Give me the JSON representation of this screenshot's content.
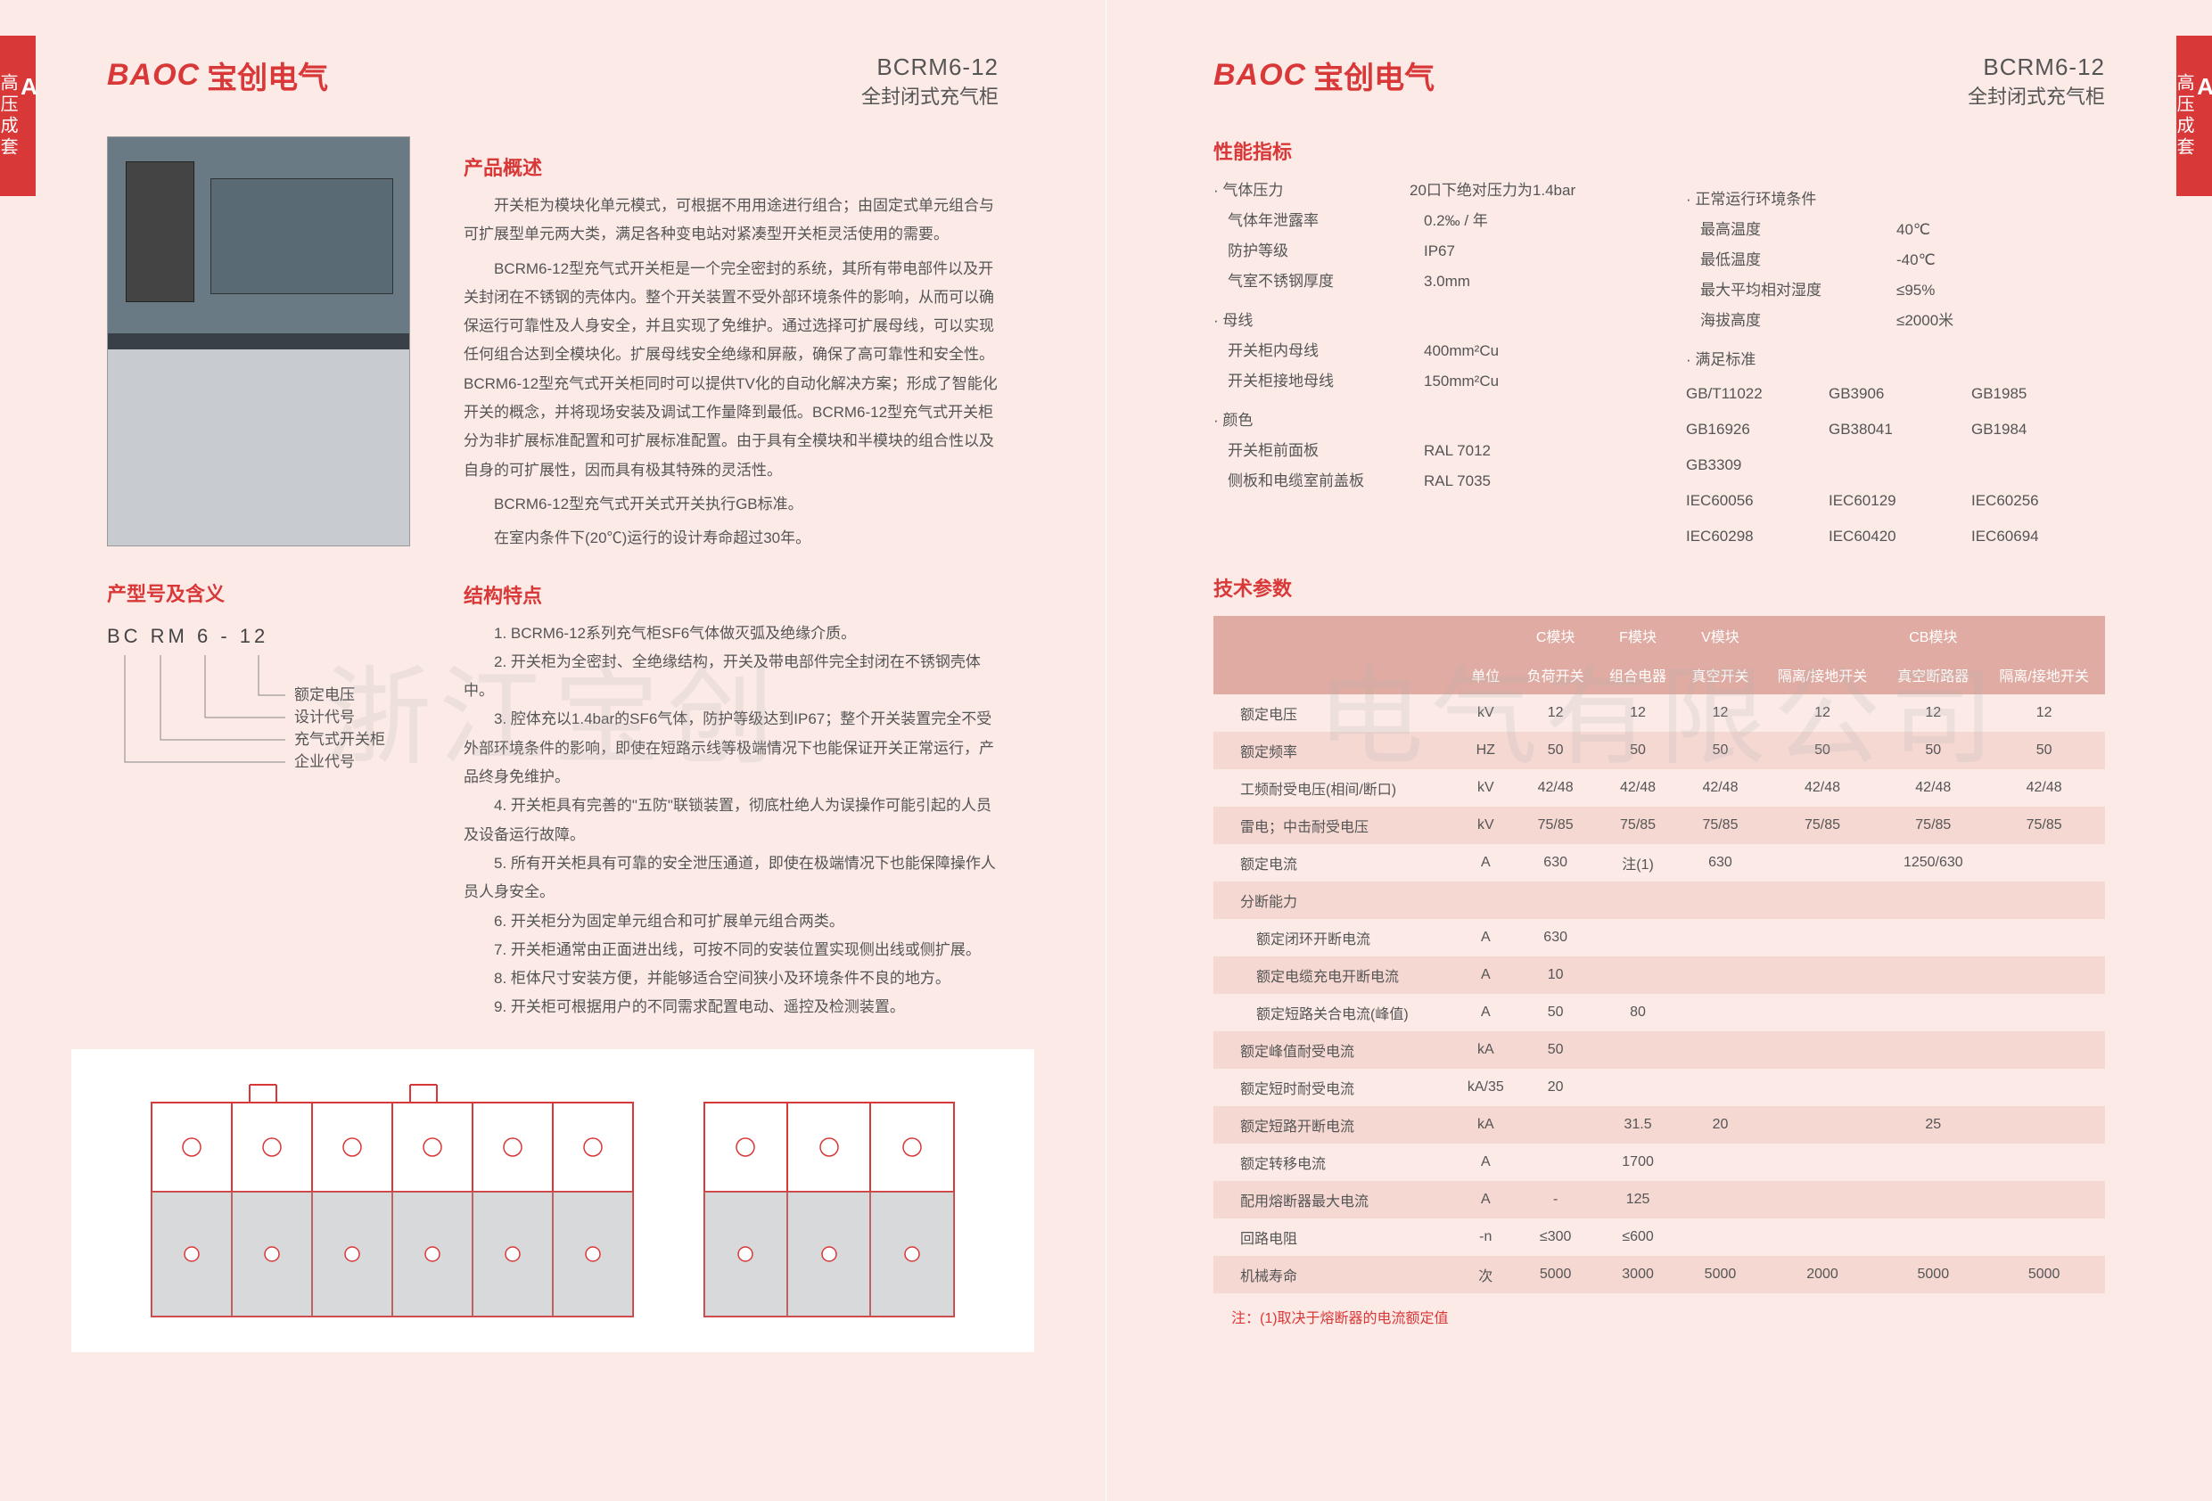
{
  "side_tab": {
    "letter": "A",
    "text": "高压成套"
  },
  "logo": {
    "mark": "BAOC",
    "cn": "宝创电气"
  },
  "model": {
    "code": "BCRM6-12",
    "sub": "全封闭式充气柜"
  },
  "left": {
    "overview_title": "产品概述",
    "overview_paras": [
      "开关柜为模块化单元模式，可根据不用用途进行组合；由固定式单元组合与可扩展型单元两大类，满足各种变电站对紧凑型开关柜灵活使用的需要。",
      "BCRM6-12型充气式开关柜是一个完全密封的系统，其所有带电部件以及开关封闭在不锈钢的壳体内。整个开关装置不受外部环境条件的影响，从而可以确保运行可靠性及人身安全，并且实现了免维护。通过选择可扩展母线，可以实现任何组合达到全模块化。扩展母线安全绝缘和屏蔽，确保了高可靠性和安全性。BCRM6-12型充气式开关柜同时可以提供TV化的自动化解决方案；形成了智能化开关的概念，并将现场安装及调试工作量降到最低。BCRM6-12型充气式开关柜分为非扩展标准配置和可扩展标准配置。由于具有全模块和半模块的组合性以及自身的可扩展性，因而具有极其特殊的灵活性。",
      "BCRM6-12型充气式开关式开关执行GB标准。",
      "在室内条件下(20℃)运行的设计寿命超过30年。"
    ],
    "meaning_title": "产型号及含义",
    "meaning_code": "BC RM  6 - 12",
    "meaning_labels": [
      "额定电压",
      "设计代号",
      "充气式开关柜",
      "企业代号"
    ],
    "feature_title": "结构特点",
    "features": [
      "1. BCRM6-12系列充气柜SF6气体做灭弧及绝缘介质。",
      "2. 开关柜为全密封、全绝缘结构，开关及带电部件完全封闭在不锈钢壳体中。",
      "3. 腔体充以1.4bar的SF6气体，防护等级达到IP67；整个开关装置完全不受外部环境条件的影响，即使在短路示线等极端情况下也能保证开关正常运行，产品终身免维护。",
      "4. 开关柜具有完善的\"五防\"联锁装置，彻底杜绝人为误操作可能引起的人员及设备运行故障。",
      "5. 所有开关柜具有可靠的安全泄压通道，即使在极端情况下也能保障操作人员人身安全。",
      "6. 开关柜分为固定单元组合和可扩展单元组合两类。",
      "7. 开关柜通常由正面进出线，可按不同的安装位置实现侧出线或侧扩展。",
      "8. 柜体尺寸安装方便，并能够适合空间狭小及环境条件不良的地方。",
      "9. 开关柜可根据用户的不同需求配置电动、遥控及检测装置。"
    ]
  },
  "right": {
    "perf_title": "性能指标",
    "gas": {
      "h": "· 气体压力",
      "v": "20口下绝对压力为1.4bar",
      "leak_k": "气体年泄露率",
      "leak_v": "0.2‰ / 年",
      "ip_k": "防护等级",
      "ip_v": "IP67",
      "thick_k": "气室不锈钢厚度",
      "thick_v": "3.0mm"
    },
    "bus": {
      "h": "· 母线",
      "in_k": "开关柜内母线",
      "in_v": "400mm²Cu",
      "gnd_k": "开关柜接地母线",
      "gnd_v": "150mm²Cu"
    },
    "color": {
      "h": "· 颜色",
      "front_k": "开关柜前面板",
      "front_v": "RAL 7012",
      "side_k": "侧板和电缆室前盖板",
      "side_v": "RAL 7035"
    },
    "env": {
      "h": "· 正常运行环境条件",
      "tmax_k": "最高温度",
      "tmax_v": "40℃",
      "tmin_k": "最低温度",
      "tmin_v": "-40℃",
      "rh_k": "最大平均相对湿度",
      "rh_v": "≤95%",
      "alt_k": "海拔高度",
      "alt_v": "≤2000米"
    },
    "std": {
      "h": "· 满足标准",
      "items": [
        "GB/T11022",
        "GB3906",
        "GB1985",
        "GB16926",
        "GB38041",
        "GB1984",
        "GB3309",
        "",
        "",
        "IEC60056",
        "IEC60129",
        "IEC60256",
        "IEC60298",
        "IEC60420",
        "IEC60694"
      ]
    },
    "tech_title": "技术参数",
    "table": {
      "group_headers": [
        "",
        "",
        "C模块",
        "F模块",
        "V模块",
        "",
        "CB模块",
        ""
      ],
      "sub_headers": [
        "",
        "单位",
        "负荷开关",
        "组合电器",
        "真空开关",
        "隔离/接地开关",
        "真空断路器",
        "隔离/接地开关"
      ],
      "rows": [
        {
          "k": "额定电压",
          "u": "kV",
          "v": [
            "12",
            "12",
            "12",
            "12",
            "12",
            "12"
          ]
        },
        {
          "k": "额定频率",
          "u": "HZ",
          "v": [
            "50",
            "50",
            "50",
            "50",
            "50",
            "50"
          ]
        },
        {
          "k": "工频耐受电压(相间/断口)",
          "u": "kV",
          "v": [
            "42/48",
            "42/48",
            "42/48",
            "42/48",
            "42/48",
            "42/48"
          ]
        },
        {
          "k": "雷电；中击耐受电压",
          "u": "kV",
          "v": [
            "75/85",
            "75/85",
            "75/85",
            "75/85",
            "75/85",
            "75/85"
          ]
        },
        {
          "k": "额定电流",
          "u": "A",
          "v": [
            "630",
            "注(1)",
            "630",
            "",
            "1250/630",
            ""
          ]
        },
        {
          "k": "分断能力",
          "u": "",
          "v": [
            "",
            "",
            "",
            "",
            "",
            ""
          ]
        },
        {
          "k": "额定闭环开断电流",
          "u": "A",
          "v": [
            "630",
            "",
            "",
            "",
            "",
            ""
          ],
          "sub": true
        },
        {
          "k": "额定电缆充电开断电流",
          "u": "A",
          "v": [
            "10",
            "",
            "",
            "",
            "",
            ""
          ],
          "sub": true
        },
        {
          "k": "额定短路关合电流(峰值)",
          "u": "A",
          "v": [
            "50",
            "80",
            "",
            "",
            "",
            ""
          ],
          "sub": true
        },
        {
          "k": "额定峰值耐受电流",
          "u": "kA",
          "v": [
            "50",
            "",
            "",
            "",
            "",
            ""
          ]
        },
        {
          "k": "额定短时耐受电流",
          "u": "kA/35",
          "v": [
            "20",
            "",
            "",
            "",
            "",
            ""
          ]
        },
        {
          "k": "额定短路开断电流",
          "u": "kA",
          "v": [
            "",
            "31.5",
            "20",
            "",
            "25",
            ""
          ]
        },
        {
          "k": "额定转移电流",
          "u": "A",
          "v": [
            "",
            "1700",
            "",
            "",
            "",
            ""
          ]
        },
        {
          "k": "配用熔断器最大电流",
          "u": "A",
          "v": [
            "-",
            "125",
            "",
            "",
            "",
            ""
          ]
        },
        {
          "k": "回路电阻",
          "u": "-n",
          "v": [
            "≤300",
            "≤600",
            "",
            "",
            "",
            ""
          ]
        },
        {
          "k": "机械寿命",
          "u": "次",
          "v": [
            "5000",
            "3000",
            "5000",
            "2000",
            "5000",
            "5000"
          ]
        }
      ],
      "note": "注：(1)取决于熔断器的电流额定值"
    }
  },
  "watermark_left": "浙江宝创",
  "watermark_right": "电气有限公司",
  "colors": {
    "accent": "#d93838",
    "table_header": "#e0aba2",
    "table_stripe": "#f5d8d2",
    "page_bg": "#fbeae6"
  }
}
